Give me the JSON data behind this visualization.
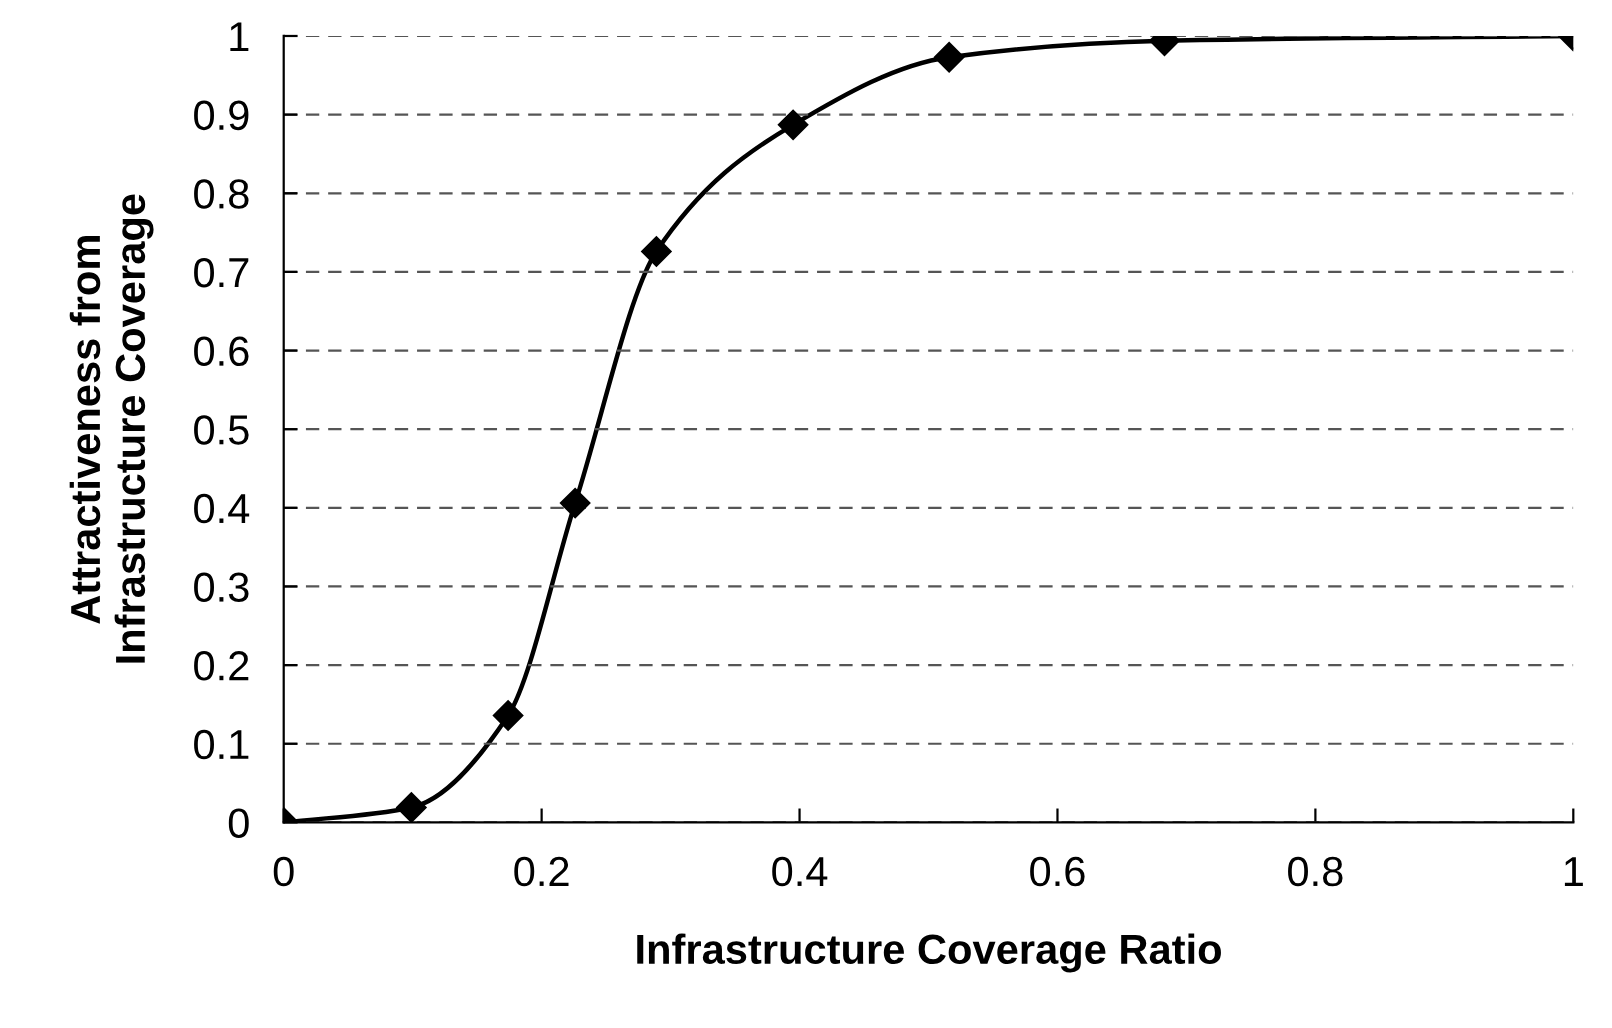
{
  "chart_data": {
    "type": "line",
    "xlabel": "Infrastructure Coverage Ratio",
    "ylabel": "Attractiveness from\nInfrastructure Coverage",
    "x": [
      0,
      0.099,
      0.174,
      0.226,
      0.289,
      0.395,
      0.516,
      0.683,
      1
    ],
    "series": [
      {
        "color": "#000000",
        "values": [
          0,
          0.019,
          0.136,
          0.406,
          0.726,
          0.887,
          0.973,
          0.994,
          1
        ]
      }
    ],
    "xlim": [
      0,
      1
    ],
    "xticks": [
      0,
      0.2,
      0.4,
      0.6,
      0.8,
      1
    ],
    "ylim": [
      0,
      1
    ],
    "yticks": [
      0,
      0.1,
      0.2,
      0.3,
      0.4,
      0.5,
      0.6,
      0.7,
      0.8,
      0.9,
      1
    ],
    "grid": "y",
    "marker": "diamond",
    "line_style": "solid",
    "legend": false
  }
}
